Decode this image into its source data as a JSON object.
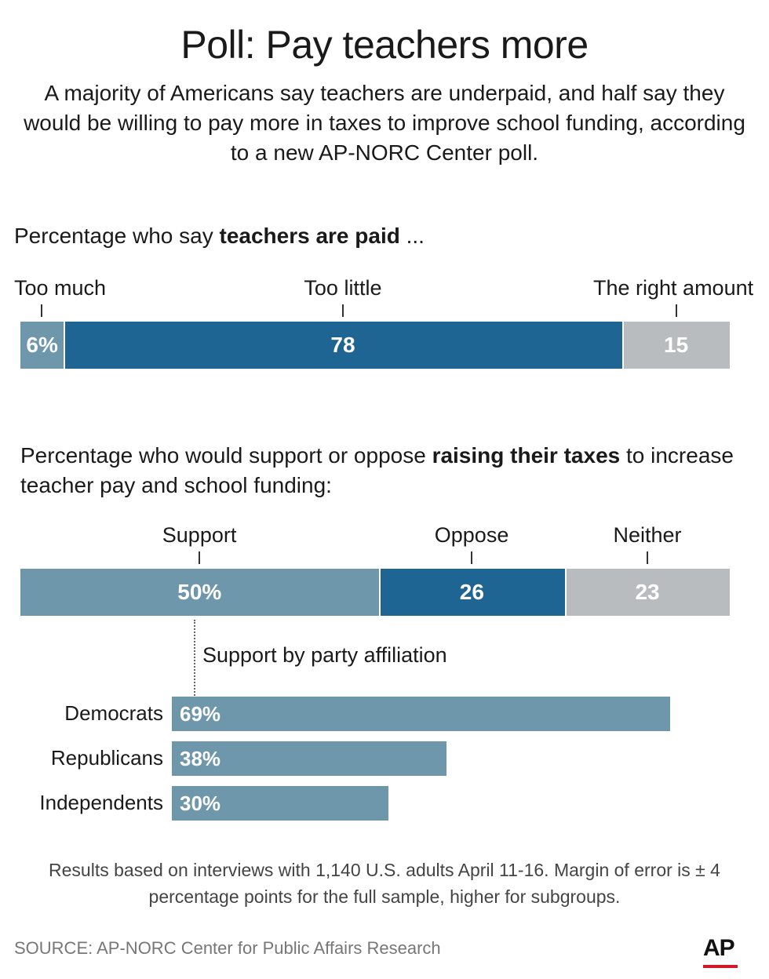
{
  "header": {
    "title": "Poll: Pay teachers more",
    "subtitle": "A majority of Americans say teachers are underpaid, and half say they would be willing to pay more in taxes to improve school funding, according to a new AP-NORC Center poll."
  },
  "chart_data": [
    {
      "type": "bar",
      "orientation": "horizontal-stacked",
      "title_prefix": "Percentage who say ",
      "title_bold": "teachers are paid",
      "title_suffix": " ...",
      "categories": [
        "Too much",
        "Too little",
        "The right amount"
      ],
      "values": [
        6,
        78,
        15
      ],
      "value_labels": [
        "6%",
        "78",
        "15"
      ],
      "colors": [
        "#6f97ab",
        "#1f6593",
        "#b9bcbe"
      ]
    },
    {
      "type": "bar",
      "orientation": "horizontal-stacked",
      "title_prefix": "Percentage who would support or oppose ",
      "title_bold": "raising their taxes",
      "title_suffix": " to increase teacher pay and school funding:",
      "categories": [
        "Support",
        "Oppose",
        "Neither"
      ],
      "values": [
        50,
        26,
        23
      ],
      "value_labels": [
        "50%",
        "26",
        "23"
      ],
      "colors": [
        "#6f97ab",
        "#1f6593",
        "#b9bcbe"
      ]
    },
    {
      "type": "bar",
      "orientation": "horizontal",
      "title": "Support by party affiliation",
      "categories": [
        "Democrats",
        "Republicans",
        "Independents"
      ],
      "values": [
        69,
        38,
        30
      ],
      "value_labels": [
        "69%",
        "38%",
        "30%"
      ],
      "color": "#6f97ab"
    }
  ],
  "footer": {
    "note": "Results based on interviews with 1,140 U.S. adults April 11-16. Margin of error is ± 4 percentage points for the full sample, higher for subgroups.",
    "source": "SOURCE: AP-NORC Center for Public Affairs Research",
    "logo": "AP"
  }
}
